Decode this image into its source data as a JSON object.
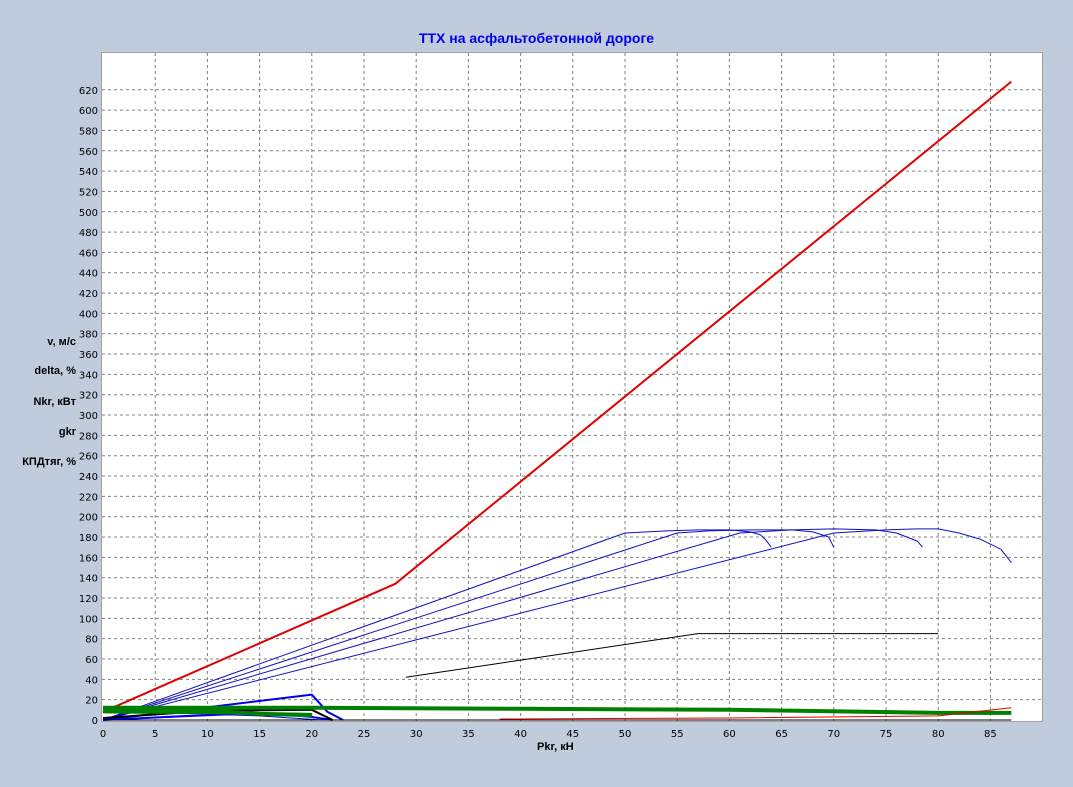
{
  "chart_data": {
    "type": "line",
    "title": "ТТХ на асфальтобетонной дороге",
    "xlabel": "Pkr, кН",
    "ylabels": [
      "v, м/с",
      "delta, %",
      "Nkr, кВт",
      "gkr",
      "КПДтяг, %"
    ],
    "xlim": [
      0,
      90
    ],
    "ylim": [
      0,
      630
    ],
    "xticks": [
      0,
      5,
      10,
      15,
      20,
      25,
      30,
      35,
      40,
      45,
      50,
      55,
      60,
      65,
      70,
      75,
      80,
      85
    ],
    "yticks": [
      0,
      20,
      40,
      60,
      80,
      100,
      120,
      140,
      160,
      180,
      200,
      220,
      240,
      260,
      280,
      300,
      320,
      340,
      360,
      380,
      400,
      420,
      440,
      460,
      480,
      500,
      520,
      540,
      560,
      580,
      600,
      620
    ],
    "grid": true,
    "series": [
      {
        "color": "#e00000",
        "width": 2,
        "points": [
          [
            0,
            8
          ],
          [
            28,
            134
          ],
          [
            87,
            628
          ]
        ]
      },
      {
        "color": "#1010c0",
        "width": 1,
        "points": [
          [
            0,
            0
          ],
          [
            50,
            184
          ],
          [
            54,
            186
          ],
          [
            57,
            187
          ],
          [
            60,
            187
          ],
          [
            62,
            185
          ],
          [
            63,
            182
          ],
          [
            63.5,
            177
          ],
          [
            64,
            170
          ]
        ]
      },
      {
        "color": "#1010c0",
        "width": 1,
        "points": [
          [
            0,
            0
          ],
          [
            55,
            184
          ],
          [
            58,
            186
          ],
          [
            62,
            187
          ],
          [
            66,
            187
          ],
          [
            68,
            185
          ],
          [
            69.5,
            180
          ],
          [
            70,
            170
          ]
        ]
      },
      {
        "color": "#1010c0",
        "width": 1,
        "points": [
          [
            0,
            0
          ],
          [
            61,
            184
          ],
          [
            66,
            187
          ],
          [
            70,
            188
          ],
          [
            74,
            187
          ],
          [
            76,
            184
          ],
          [
            78,
            176
          ],
          [
            78.5,
            170
          ]
        ]
      },
      {
        "color": "#1010c0",
        "width": 1,
        "points": [
          [
            0,
            0
          ],
          [
            70,
            184
          ],
          [
            75,
            187
          ],
          [
            78,
            188
          ],
          [
            80,
            188
          ],
          [
            82,
            184
          ],
          [
            84,
            178
          ],
          [
            86,
            168
          ],
          [
            87,
            155
          ]
        ]
      },
      {
        "color": "#0000ee",
        "width": 2,
        "points": [
          [
            0,
            0
          ],
          [
            20,
            25
          ],
          [
            21.5,
            8
          ],
          [
            23,
            0
          ]
        ]
      },
      {
        "color": "#0000ee",
        "width": 2,
        "points": [
          [
            0,
            0
          ],
          [
            14,
            7
          ],
          [
            17,
            6
          ],
          [
            20,
            3
          ],
          [
            22,
            0
          ]
        ]
      },
      {
        "color": "#0000ee",
        "width": 1,
        "points": [
          [
            0,
            0
          ],
          [
            12,
            5
          ],
          [
            15,
            4
          ],
          [
            18,
            2
          ],
          [
            21,
            0
          ]
        ]
      },
      {
        "color": "#000000",
        "width": 1,
        "points": [
          [
            29,
            42
          ],
          [
            57,
            85
          ],
          [
            80,
            85
          ]
        ]
      },
      {
        "color": "#000000",
        "width": 2,
        "points": [
          [
            0,
            2
          ],
          [
            10,
            9
          ],
          [
            20,
            10
          ],
          [
            22,
            0
          ]
        ]
      },
      {
        "color": "#000000",
        "width": 1,
        "points": [
          [
            0,
            0
          ],
          [
            87,
            0
          ]
        ]
      },
      {
        "color": "#008000",
        "width": 4,
        "points": [
          [
            0,
            12
          ],
          [
            20,
            12
          ],
          [
            40,
            11
          ],
          [
            60,
            10
          ],
          [
            80,
            7
          ],
          [
            87,
            7
          ]
        ]
      },
      {
        "color": "#008000",
        "width": 4,
        "points": [
          [
            0,
            10
          ],
          [
            10,
            9
          ],
          [
            15,
            6
          ],
          [
            20,
            5
          ]
        ]
      },
      {
        "color": "#008000",
        "width": 3,
        "points": [
          [
            0,
            8
          ],
          [
            12,
            7
          ],
          [
            20,
            4
          ]
        ]
      },
      {
        "color": "#e00000",
        "width": 1,
        "points": [
          [
            38,
            1
          ],
          [
            60,
            2
          ],
          [
            80,
            4
          ],
          [
            87,
            12
          ]
        ]
      }
    ]
  }
}
